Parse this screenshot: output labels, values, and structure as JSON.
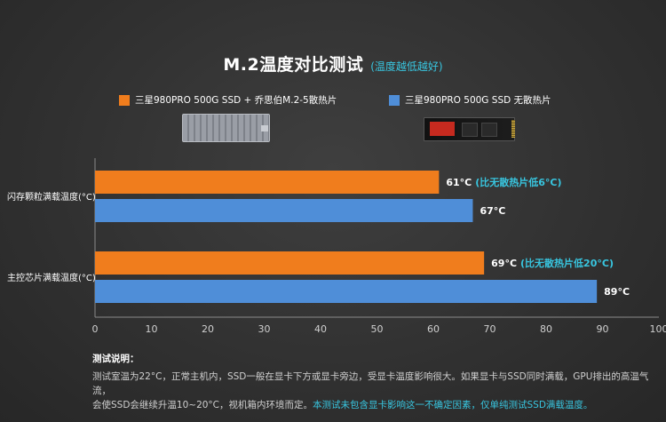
{
  "chart_data": {
    "type": "bar",
    "orientation": "horizontal",
    "title": "M.2温度对比测试",
    "subtitle": "(温度越低越好)",
    "categories": [
      "闪存颗粒满载温度(°C)",
      "主控芯片满载温度(°C)"
    ],
    "series": [
      {
        "name": "三星980PRO 500G SSD + 乔思伯M.2-5散热片",
        "color": "#f07d1d",
        "values": [
          61,
          69
        ],
        "value_labels": [
          "61°C",
          "69°C"
        ],
        "notes": [
          "(比无散热片低6°C)",
          "(比无散热片低20°C)"
        ]
      },
      {
        "name": "三星980PRO 500G SSD 无散热片",
        "color": "#4f8ed8",
        "values": [
          67,
          89
        ],
        "value_labels": [
          "67°C",
          "89°C"
        ],
        "notes": [
          "",
          ""
        ]
      }
    ],
    "xlim": [
      0,
      100
    ],
    "xticks": [
      "0",
      "10",
      "20",
      "30",
      "40",
      "50",
      "60",
      "70",
      "80",
      "90",
      "100"
    ],
    "grid": false,
    "legend": "top"
  },
  "notes": {
    "title": "测试说明：",
    "line1": "测试室温为22°C，正常主机内，SSD一般在显卡下方或显卡旁边，受显卡温度影响很大。如果显卡与SSD同时满载，GPU排出的高温气流，",
    "line2_plain": "会使SSD会继续升温10~20°C，视机箱内环境而定。",
    "line2_highlight": "本测试未包含显卡影响这一不确定因素，仅单纯测试SSD满载温度。"
  },
  "colors": {
    "accent": "#38c6e0",
    "orange": "#f07d1d",
    "blue": "#4f8ed8"
  }
}
